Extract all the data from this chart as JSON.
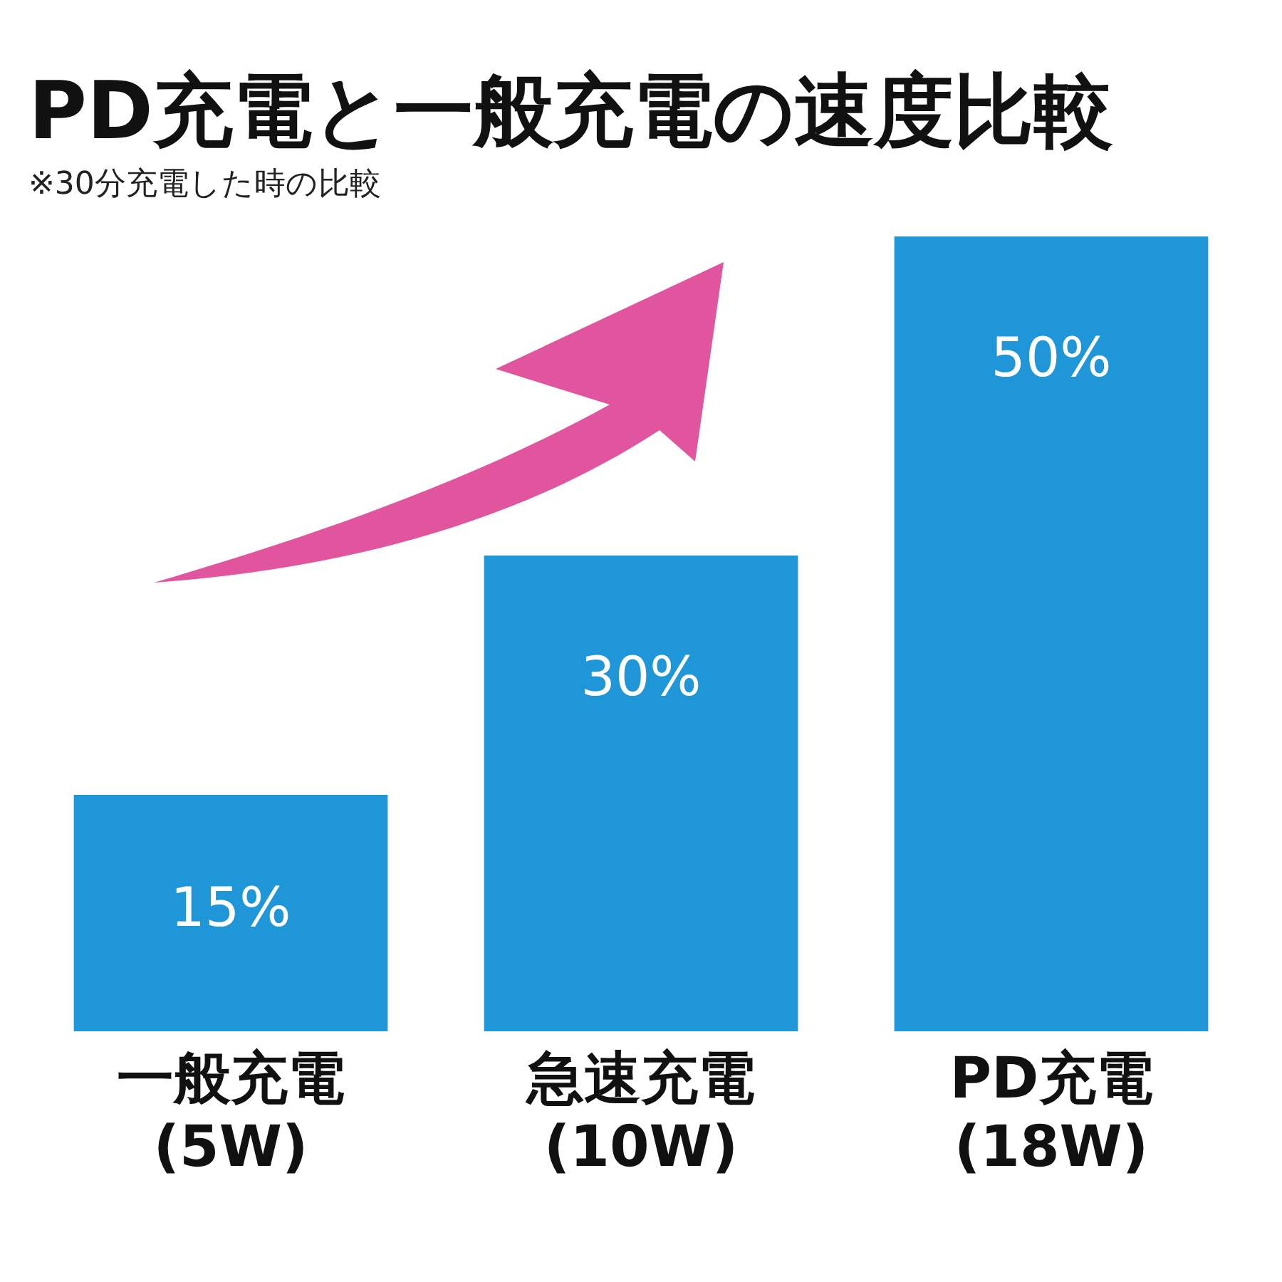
{
  "chart_data": {
    "type": "bar",
    "title": "PD充電と一般充電の速度比較",
    "subtitle": "※30分充電した時の比較",
    "categories": [
      "一般充電 (5W)",
      "急速充電 (10W)",
      "PD充電 (18W)"
    ],
    "values": [
      15,
      30,
      50
    ],
    "color": "#1e96d8",
    "value_labels": [
      "15%",
      "30%",
      "50%"
    ],
    "grid": false,
    "legend": false,
    "tick_labels": "x"
  }
}
